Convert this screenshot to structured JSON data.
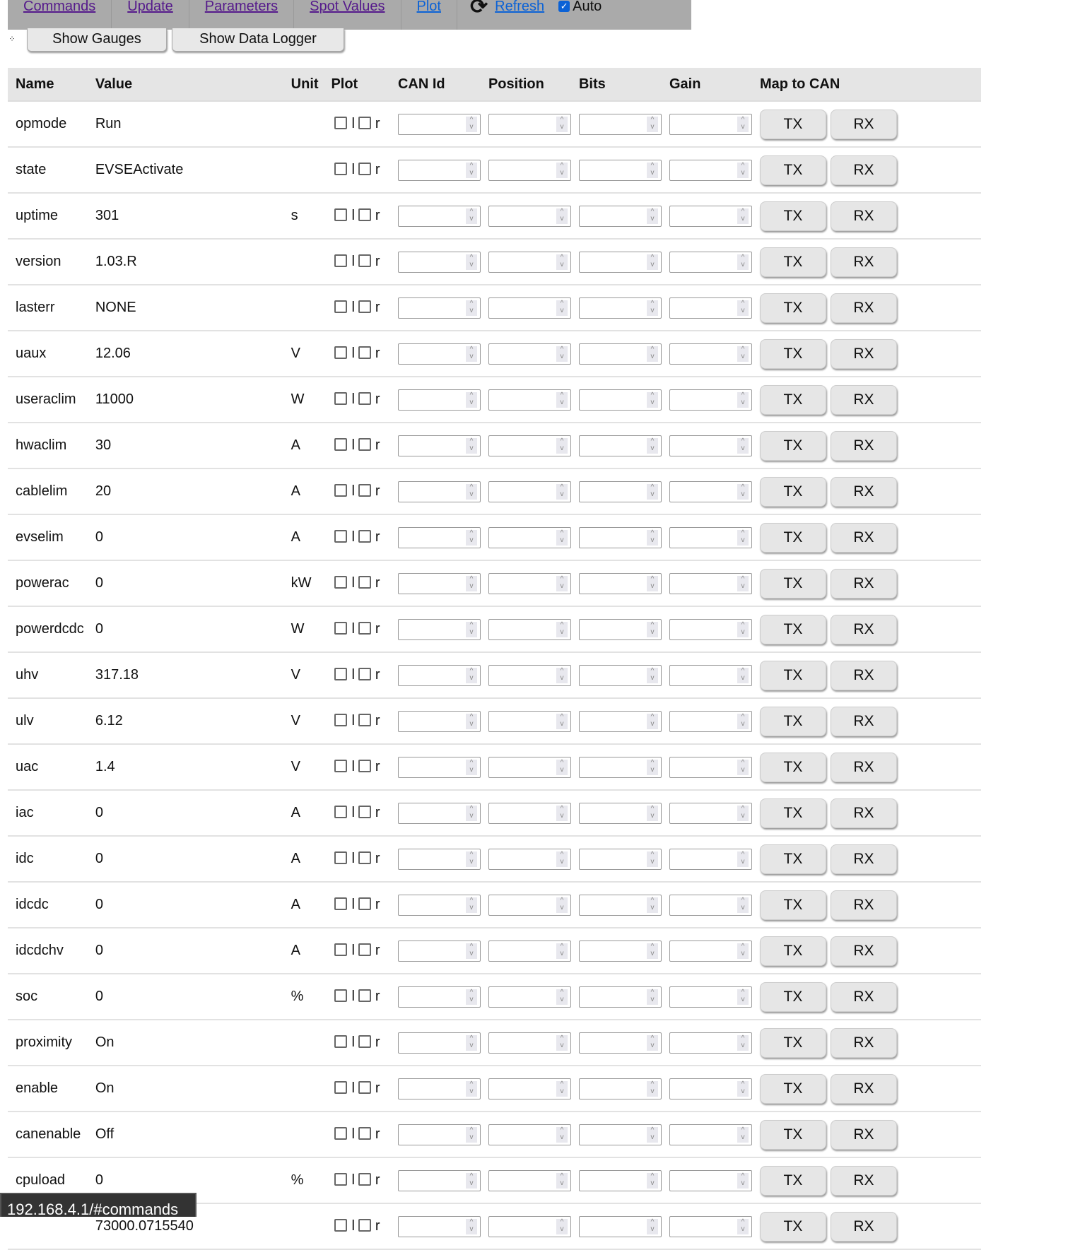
{
  "nav": {
    "items": [
      {
        "label": "Commands",
        "visited": true
      },
      {
        "label": "Update",
        "visited": true
      },
      {
        "label": "Parameters",
        "visited": true
      },
      {
        "label": "Spot Values",
        "visited": true
      },
      {
        "label": "Plot",
        "visited": false
      }
    ],
    "refresh_label": "Refresh",
    "auto_label": "Auto",
    "auto_checked": true
  },
  "buttons": {
    "show_gauges": "Show Gauges",
    "show_data_logger": "Show Data Logger"
  },
  "table": {
    "headers": [
      "Name",
      "Value",
      "Unit",
      "Plot",
      "CAN Id",
      "Position",
      "Bits",
      "Gain",
      "Map to CAN"
    ],
    "plot_labels": [
      "l",
      "r"
    ],
    "tx_label": "TX",
    "rx_label": "RX",
    "rows": [
      {
        "name": "opmode",
        "value": "Run",
        "unit": ""
      },
      {
        "name": "state",
        "value": "EVSEActivate",
        "unit": ""
      },
      {
        "name": "uptime",
        "value": "301",
        "unit": "s"
      },
      {
        "name": "version",
        "value": "1.03.R",
        "unit": ""
      },
      {
        "name": "lasterr",
        "value": "NONE",
        "unit": ""
      },
      {
        "name": "uaux",
        "value": "12.06",
        "unit": "V"
      },
      {
        "name": "useraclim",
        "value": "11000",
        "unit": "W"
      },
      {
        "name": "hwaclim",
        "value": "30",
        "unit": "A"
      },
      {
        "name": "cablelim",
        "value": "20",
        "unit": "A"
      },
      {
        "name": "evselim",
        "value": "0",
        "unit": "A"
      },
      {
        "name": "powerac",
        "value": "0",
        "unit": "kW"
      },
      {
        "name": "powerdcdc",
        "value": "0",
        "unit": "W"
      },
      {
        "name": "uhv",
        "value": "317.18",
        "unit": "V"
      },
      {
        "name": "ulv",
        "value": "6.12",
        "unit": "V"
      },
      {
        "name": "uac",
        "value": "1.4",
        "unit": "V"
      },
      {
        "name": "iac",
        "value": "0",
        "unit": "A"
      },
      {
        "name": "idc",
        "value": "0",
        "unit": "A"
      },
      {
        "name": "idcdc",
        "value": "0",
        "unit": "A"
      },
      {
        "name": "idcdchv",
        "value": "0",
        "unit": "A"
      },
      {
        "name": "soc",
        "value": "0",
        "unit": "%"
      },
      {
        "name": "proximity",
        "value": "On",
        "unit": ""
      },
      {
        "name": "enable",
        "value": "On",
        "unit": ""
      },
      {
        "name": "canenable",
        "value": "Off",
        "unit": ""
      },
      {
        "name": "cpuload",
        "value": "0",
        "unit": "%"
      },
      {
        "name": "",
        "value": "73000.0715540",
        "unit": ""
      }
    ]
  },
  "status_tooltip": "192.168.4.1/#commands"
}
